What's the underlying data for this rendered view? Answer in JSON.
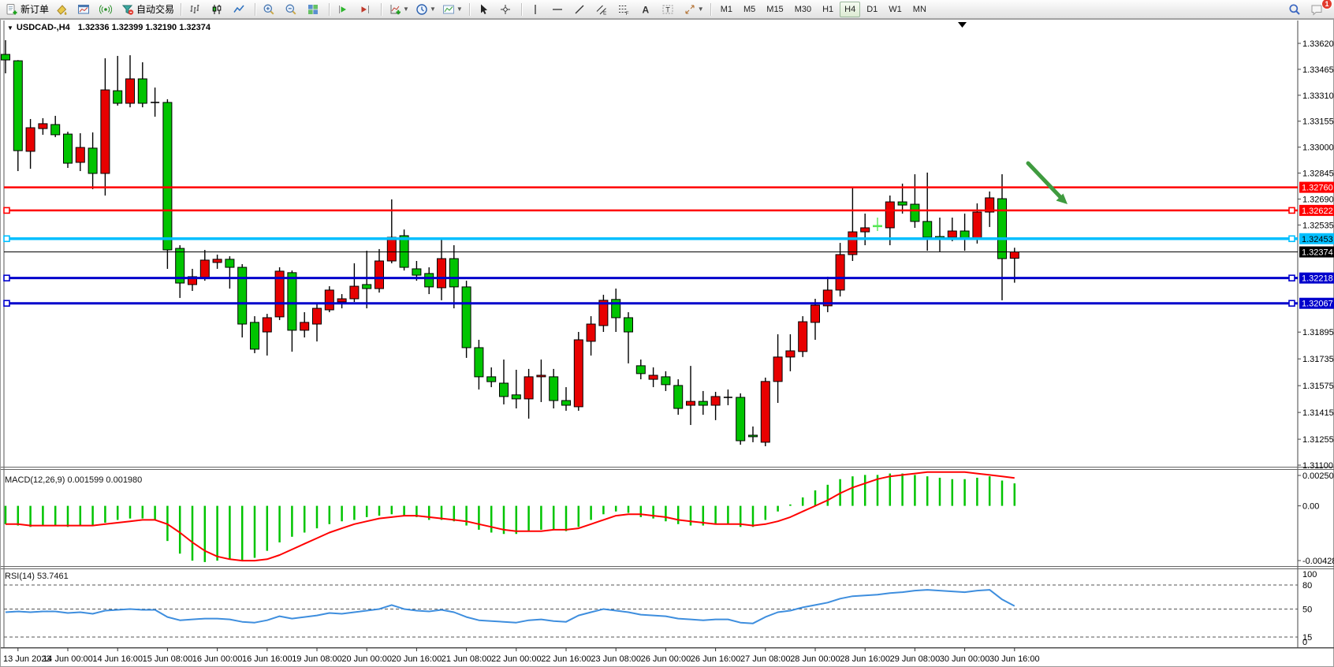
{
  "toolbar": {
    "groups": [
      {
        "items": [
          {
            "icon": "new-order",
            "label": "新订单"
          },
          {
            "icon": "paint-bucket"
          },
          {
            "icon": "chart-window"
          },
          {
            "icon": "signal"
          },
          {
            "icon": "auto-trading",
            "label": "自动交易"
          }
        ]
      },
      {
        "items": [
          {
            "icon": "bar-chart"
          },
          {
            "icon": "candlestick-chart"
          },
          {
            "icon": "line-chart"
          }
        ]
      },
      {
        "items": [
          {
            "icon": "zoom-in"
          },
          {
            "icon": "zoom-out"
          },
          {
            "icon": "tile-windows"
          }
        ]
      },
      {
        "items": [
          {
            "icon": "auto-scroll"
          },
          {
            "icon": "chart-shift"
          }
        ]
      },
      {
        "items": [
          {
            "icon": "add-indicator",
            "dropdown": true
          },
          {
            "icon": "timeframe-clock",
            "dropdown": true
          },
          {
            "icon": "chart-template",
            "dropdown": true
          }
        ]
      },
      {
        "items": [
          {
            "icon": "cursor"
          },
          {
            "icon": "crosshair"
          }
        ]
      },
      {
        "items": [
          {
            "icon": "vertical-line"
          },
          {
            "icon": "horizontal-line"
          },
          {
            "icon": "trend-line"
          },
          {
            "icon": "equidistant-channel"
          },
          {
            "icon": "fibonacci"
          },
          {
            "icon": "text"
          },
          {
            "icon": "text-label"
          },
          {
            "icon": "arrow-objects",
            "dropdown": true
          }
        ]
      },
      {
        "type": "timeframes"
      }
    ],
    "timeframes": [
      "M1",
      "M5",
      "M15",
      "M30",
      "H1",
      "H4",
      "D1",
      "W1",
      "MN"
    ],
    "active_timeframe": "H4",
    "right_icons": [
      {
        "icon": "search"
      },
      {
        "icon": "chat",
        "badge": "1"
      }
    ]
  },
  "window": {
    "title_symbol": "USDCAD-,H4",
    "title_ohlc": "1.32336 1.32399 1.32190 1.32374"
  },
  "chart_data": {
    "type": "candlestick",
    "symbol": "USDCAD",
    "period": "H4",
    "current_bar": {
      "open": 1.32336,
      "high": 1.32399,
      "low": 1.3219,
      "close": 1.32374
    },
    "colors": {
      "up": "#E80000",
      "down": "#00C400",
      "lime": "#55E855",
      "wick": "#000000",
      "macd_hist": "#00C400",
      "macd_signal": "#FF0000",
      "rsi_line": "#3E8EDE"
    },
    "price_axis_ticks": [
      "1.33620",
      "1.33465",
      "1.33310",
      "1.33155",
      "1.33000",
      "1.32845",
      "1.32690",
      "1.32535",
      "1.31895",
      "1.31735",
      "1.31575",
      "1.31415",
      "1.31255",
      "1.31100"
    ],
    "hlines": [
      {
        "price": 1.3276,
        "label": "1.32760",
        "color": "#FF0000",
        "width": 2.5,
        "selected": false,
        "label_fg": "#FFFFFF"
      },
      {
        "price": 1.32622,
        "label": "1.32622",
        "color": "#FF0000",
        "width": 2.5,
        "selected": true,
        "label_fg": "#FFFFFF"
      },
      {
        "price": 1.32453,
        "label": "1.32453",
        "color": "#00BFFF",
        "width": 3.5,
        "selected": true,
        "label_fg": "#000000"
      },
      {
        "price": 1.32218,
        "label": "1.32218",
        "color": "#0000CC",
        "width": 3,
        "selected": true,
        "label_fg": "#FFFFFF"
      },
      {
        "price": 1.32067,
        "label": "1.32067",
        "color": "#0000CC",
        "width": 3,
        "selected": true,
        "label_fg": "#FFFFFF"
      }
    ],
    "current_price_line": {
      "price": 1.32374,
      "label": "1.32374",
      "color": "#000000",
      "label_fg": "#FFFFFF"
    },
    "candles": [
      [
        1.33554,
        1.33639,
        1.33441,
        1.33521
      ],
      [
        1.33516,
        1.3352,
        1.32857,
        1.32979
      ],
      [
        1.32975,
        1.33168,
        1.32871,
        1.33116
      ],
      [
        1.33111,
        1.33173,
        1.33074,
        1.3314
      ],
      [
        1.33135,
        1.33187,
        1.3306,
        1.33074
      ],
      [
        1.33078,
        1.33092,
        1.32876,
        1.32904
      ],
      [
        1.32909,
        1.33083,
        1.32857,
        1.32998
      ],
      [
        1.32994,
        1.33088,
        1.32749,
        1.32843
      ],
      [
        1.32843,
        1.33531,
        1.32711,
        1.33342
      ],
      [
        1.33337,
        1.33545,
        1.33248,
        1.33262
      ],
      [
        1.33262,
        1.33549,
        1.33238,
        1.33408
      ],
      [
        1.33408,
        1.33507,
        1.33238,
        1.33262
      ],
      [
        1.3327,
        1.33356,
        1.33182,
        1.33267
      ],
      [
        1.33267,
        1.33286,
        1.32273,
        1.32386
      ],
      [
        1.32395,
        1.32414,
        1.32099,
        1.32188
      ],
      [
        1.32179,
        1.32273,
        1.32141,
        1.32226
      ],
      [
        1.32216,
        1.32386,
        1.32202,
        1.32325
      ],
      [
        1.32311,
        1.32358,
        1.32273,
        1.3233
      ],
      [
        1.3233,
        1.32348,
        1.32155,
        1.32282
      ],
      [
        1.32282,
        1.32301,
        1.31863,
        1.31943
      ],
      [
        1.31953,
        1.3199,
        1.31769,
        1.31793
      ],
      [
        1.31896,
        1.32004,
        1.31755,
        1.31981
      ],
      [
        1.31986,
        1.32282,
        1.31967,
        1.32259
      ],
      [
        1.3225,
        1.32263,
        1.31778,
        1.31906
      ],
      [
        1.31906,
        1.32014,
        1.31863,
        1.31953
      ],
      [
        1.31943,
        1.32061,
        1.31839,
        1.32037
      ],
      [
        1.32028,
        1.32169,
        1.32014,
        1.32146
      ],
      [
        1.32075,
        1.32122,
        1.32037,
        1.32094
      ],
      [
        1.32094,
        1.32306,
        1.32075,
        1.32169
      ],
      [
        1.32179,
        1.32381,
        1.32037,
        1.32155
      ],
      [
        1.32155,
        1.32391,
        1.32131,
        1.3232
      ],
      [
        1.3232,
        1.32688,
        1.32306,
        1.32461
      ],
      [
        1.32471,
        1.32508,
        1.32263,
        1.32282
      ],
      [
        1.32273,
        1.3232,
        1.32202,
        1.32235
      ],
      [
        1.32245,
        1.32282,
        1.32122,
        1.32165
      ],
      [
        1.3216,
        1.32452,
        1.32085,
        1.32334
      ],
      [
        1.32334,
        1.32414,
        1.32037,
        1.32165
      ],
      [
        1.32165,
        1.32202,
        1.31741,
        1.31802
      ],
      [
        1.31802,
        1.31849,
        1.31552,
        1.31628
      ],
      [
        1.31628,
        1.31684,
        1.31566,
        1.31599
      ],
      [
        1.3159,
        1.31731,
        1.31463,
        1.3151
      ],
      [
        1.3152,
        1.3167,
        1.31439,
        1.31496
      ],
      [
        1.31496,
        1.31675,
        1.31378,
        1.31628
      ],
      [
        1.31628,
        1.31731,
        1.31477,
        1.31637
      ],
      [
        1.31628,
        1.31675,
        1.31439,
        1.31486
      ],
      [
        1.31486,
        1.31566,
        1.31425,
        1.31458
      ],
      [
        1.31449,
        1.31896,
        1.31425,
        1.31849
      ],
      [
        1.3184,
        1.3199,
        1.31755,
        1.31943
      ],
      [
        1.31934,
        1.32118,
        1.31896,
        1.32085
      ],
      [
        1.3209,
        1.32155,
        1.31896,
        1.31981
      ],
      [
        1.31981,
        1.32014,
        1.31708,
        1.31896
      ],
      [
        1.31694,
        1.31731,
        1.31613,
        1.31647
      ],
      [
        1.31613,
        1.31684,
        1.31566,
        1.31637
      ],
      [
        1.31628,
        1.31661,
        1.31543,
        1.31581
      ],
      [
        1.31576,
        1.31613,
        1.31401,
        1.31439
      ],
      [
        1.31458,
        1.31693,
        1.3134,
        1.31481
      ],
      [
        1.31481,
        1.31543,
        1.31401,
        1.31458
      ],
      [
        1.31458,
        1.31538,
        1.31369,
        1.3151
      ],
      [
        1.31505,
        1.31552,
        1.31458,
        1.31505
      ],
      [
        1.31505,
        1.31529,
        1.31222,
        1.31246
      ],
      [
        1.31279,
        1.31331,
        1.31237,
        1.3127
      ],
      [
        1.31237,
        1.31623,
        1.31213,
        1.316
      ],
      [
        1.316,
        1.31882,
        1.31472,
        1.31746
      ],
      [
        1.31746,
        1.31882,
        1.31661,
        1.31783
      ],
      [
        1.31779,
        1.3199,
        1.31746,
        1.31957
      ],
      [
        1.31953,
        1.32094,
        1.31849,
        1.32056
      ],
      [
        1.32052,
        1.32226,
        1.32014,
        1.32146
      ],
      [
        1.32146,
        1.32428,
        1.32108,
        1.32358
      ],
      [
        1.32358,
        1.32758,
        1.3232,
        1.32494
      ],
      [
        1.32494,
        1.32603,
        1.32414,
        1.32518
      ],
      [
        1.32529,
        1.32579,
        1.32499,
        1.32532,
        "lime"
      ],
      [
        1.32518,
        1.32711,
        1.32414,
        1.32673
      ],
      [
        1.32673,
        1.32782,
        1.32603,
        1.32654
      ],
      [
        1.32659,
        1.32838,
        1.32518,
        1.32556
      ],
      [
        1.32556,
        1.32848,
        1.32381,
        1.32461
      ],
      [
        1.32466,
        1.32579,
        1.32377,
        1.32461
      ],
      [
        1.32461,
        1.32579,
        1.32438,
        1.32499
      ],
      [
        1.32499,
        1.32603,
        1.32381,
        1.32452
      ],
      [
        1.32452,
        1.32664,
        1.32424,
        1.32612
      ],
      [
        1.32612,
        1.32735,
        1.32523,
        1.32697
      ],
      [
        1.32692,
        1.32838,
        1.32085,
        1.32334
      ],
      [
        1.32336,
        1.32399,
        1.3219,
        1.32374
      ]
    ],
    "macd": {
      "label": "MACD(12,26,9) 0.001599 0.001980",
      "axis_labels": [
        "0.002502",
        "0.00",
        "-0.004283"
      ],
      "hist": [
        -0.0013,
        -0.0014,
        -0.0015,
        -0.0014,
        -0.0014,
        -0.0015,
        -0.0014,
        -0.0014,
        -0.0012,
        -0.001,
        -0.0009,
        -0.0009,
        -0.001,
        -0.0025,
        -0.0034,
        -0.0039,
        -0.004,
        -0.0039,
        -0.0038,
        -0.0039,
        -0.0037,
        -0.0032,
        -0.0026,
        -0.0022,
        -0.0019,
        -0.0016,
        -0.0013,
        -0.0011,
        -0.001,
        -0.0008,
        -0.0007,
        -0.0006,
        -0.0007,
        -0.0008,
        -0.001,
        -0.001,
        -0.0011,
        -0.0014,
        -0.0017,
        -0.0019,
        -0.002,
        -0.002,
        -0.0018,
        -0.0017,
        -0.0017,
        -0.0018,
        -0.0015,
        -0.001,
        -0.0006,
        -0.0004,
        -0.0005,
        -0.0008,
        -0.0009,
        -0.0011,
        -0.0013,
        -0.0014,
        -0.0014,
        -0.0013,
        -0.0013,
        -0.0015,
        -0.0015,
        -0.001,
        -0.0004,
        0.0001,
        0.0006,
        0.0011,
        0.0015,
        0.0019,
        0.0021,
        0.0022,
        0.0022,
        0.0023,
        0.0023,
        0.0022,
        0.0021,
        0.002,
        0.0019,
        0.0019,
        0.002,
        0.0021,
        0.0018,
        0.001599
      ],
      "signal": [
        -0.0013,
        -0.0013,
        -0.0014,
        -0.0014,
        -0.0014,
        -0.0014,
        -0.0014,
        -0.0014,
        -0.0013,
        -0.0012,
        -0.0011,
        -0.001,
        -0.001,
        -0.0013,
        -0.0019,
        -0.0026,
        -0.0032,
        -0.0036,
        -0.0038,
        -0.0039,
        -0.0039,
        -0.0038,
        -0.0035,
        -0.0031,
        -0.0027,
        -0.0023,
        -0.0019,
        -0.0016,
        -0.0013,
        -0.0011,
        -0.0009,
        -0.0008,
        -0.0007,
        -0.0007,
        -0.0008,
        -0.0009,
        -0.001,
        -0.0011,
        -0.0013,
        -0.0015,
        -0.0017,
        -0.0018,
        -0.0018,
        -0.0018,
        -0.0017,
        -0.0017,
        -0.0016,
        -0.0013,
        -0.001,
        -0.0007,
        -0.0006,
        -0.0006,
        -0.0007,
        -0.0008,
        -0.001,
        -0.0011,
        -0.0012,
        -0.0013,
        -0.0013,
        -0.0013,
        -0.0014,
        -0.0013,
        -0.0011,
        -0.0008,
        -0.0004,
        0.0,
        0.0004,
        0.0009,
        0.0013,
        0.0016,
        0.0019,
        0.0021,
        0.0022,
        0.0023,
        0.0024,
        0.0024,
        0.0024,
        0.0024,
        0.0023,
        0.0022,
        0.0021,
        0.00198
      ]
    },
    "rsi": {
      "label": "RSI(14) 53.7461",
      "axis_labels": [
        "100",
        "80",
        "50",
        "15",
        "0"
      ],
      "dashed_levels": [
        80,
        50,
        15
      ],
      "values": [
        46,
        47,
        46,
        47,
        47,
        45,
        46,
        44,
        48,
        49,
        50,
        49,
        49,
        40,
        36,
        37,
        38,
        38,
        37,
        34,
        33,
        36,
        41,
        38,
        40,
        42,
        45,
        44,
        46,
        48,
        50,
        55,
        50,
        48,
        47,
        49,
        46,
        40,
        36,
        35,
        34,
        33,
        36,
        37,
        35,
        34,
        42,
        46,
        50,
        48,
        46,
        43,
        42,
        41,
        38,
        37,
        36,
        37,
        37,
        33,
        32,
        40,
        46,
        48,
        52,
        55,
        58,
        63,
        66,
        67,
        68,
        70,
        71,
        73,
        74,
        73,
        72,
        71,
        73,
        74,
        62,
        53.75
      ]
    },
    "time_labels": [
      "13 Jun 2023",
      "14 Jun 00:00",
      "14 Jun 16:00",
      "15 Jun 08:00",
      "16 Jun 00:00",
      "16 Jun 16:00",
      "19 Jun 08:00",
      "20 Jun 00:00",
      "20 Jun 16:00",
      "21 Jun 08:00",
      "22 Jun 00:00",
      "22 Jun 16:00",
      "23 Jun 08:00",
      "26 Jun 00:00",
      "26 Jun 16:00",
      "27 Jun 08:00",
      "28 Jun 00:00",
      "28 Jun 16:00",
      "29 Jun 08:00",
      "30 Jun 00:00",
      "30 Jun 16:00"
    ],
    "arrow_annotation": {
      "color": "#3F9B3F"
    }
  }
}
